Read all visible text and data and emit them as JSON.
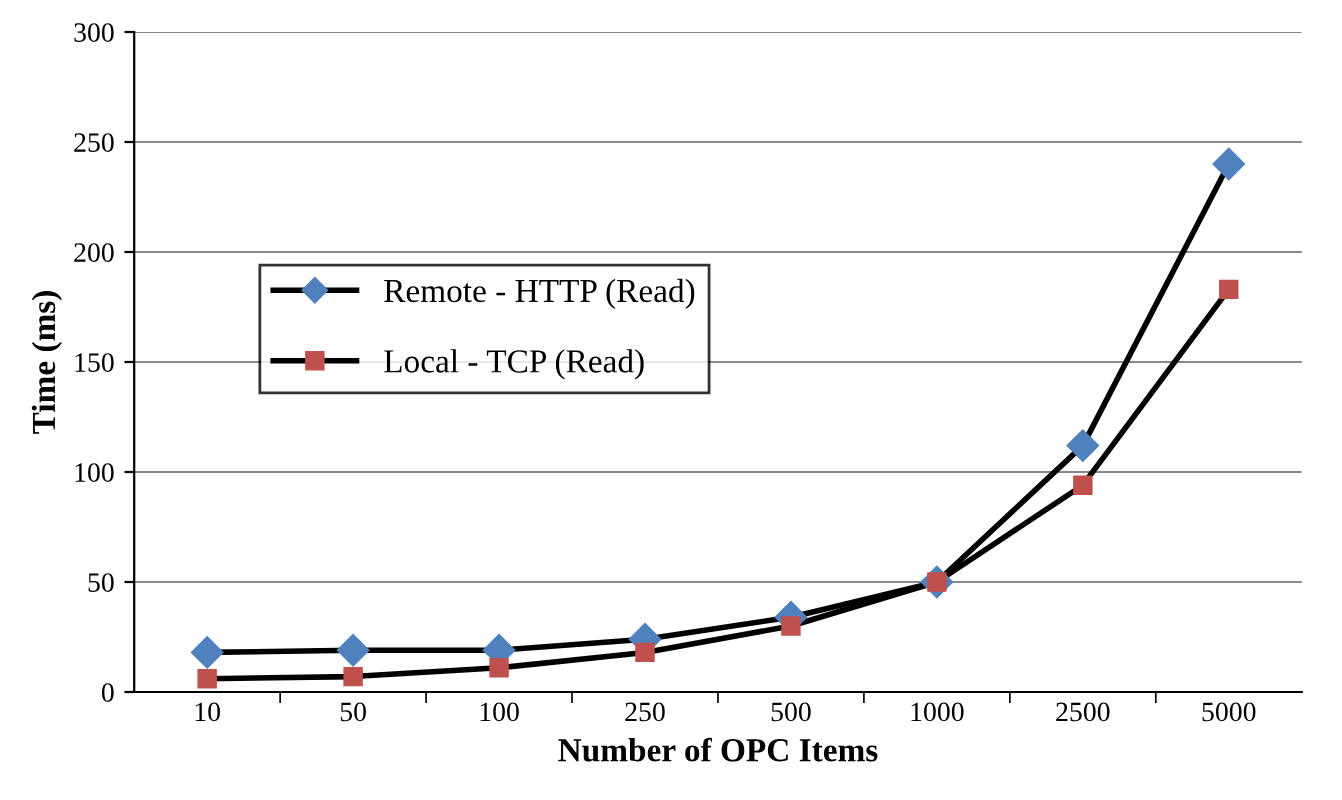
{
  "chart_data": {
    "type": "line",
    "xlabel": "Number of OPC Items",
    "ylabel": "Time (ms)",
    "categories": [
      "10",
      "50",
      "100",
      "250",
      "500",
      "1000",
      "2500",
      "5000"
    ],
    "series": [
      {
        "name": "Remote - HTTP (Read)",
        "color": "#4f81bd",
        "marker": "diamond",
        "values": [
          18,
          19,
          19,
          24,
          34,
          50,
          112,
          240
        ]
      },
      {
        "name": "Local - TCP (Read)",
        "color": "#c0504d",
        "marker": "square",
        "values": [
          6,
          7,
          11,
          18,
          30,
          50,
          94,
          183
        ]
      }
    ],
    "ylim": [
      0,
      300
    ],
    "yticks": [
      0,
      50,
      100,
      150,
      200,
      250,
      300
    ],
    "grid": "y",
    "legend": "center"
  }
}
